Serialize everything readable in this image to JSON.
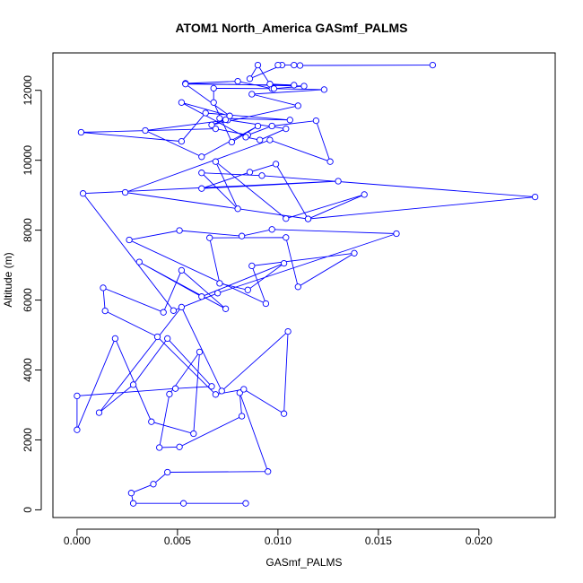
{
  "chart_data": {
    "type": "line",
    "title": "ATOM1 North_America GASmf_PALMS",
    "xlabel": "GASmf_PALMS",
    "ylabel": "Altitude (m)",
    "xlim": [
      -0.0012,
      0.0238
    ],
    "ylim": [
      -220,
      13070
    ],
    "x_ticks": [
      0.0,
      0.005,
      0.01,
      0.015,
      0.02
    ],
    "x_tick_labels": [
      "0.000",
      "0.005",
      "0.010",
      "0.015",
      "0.020"
    ],
    "y_ticks": [
      0,
      2000,
      4000,
      6000,
      8000,
      10000,
      12000
    ],
    "y_tick_labels": [
      "0",
      "2000",
      "4000",
      "6000",
      "8000",
      "10000",
      "12000"
    ],
    "grid": false,
    "legend": "none",
    "markers": "open-circle",
    "colors": {
      "series": "#0000ff",
      "axis": "#000000",
      "background": "#ffffff"
    },
    "series": [
      {
        "x": [
          0.0084,
          0.0053,
          0.0028,
          0.0027,
          0.0038,
          0.0045,
          0.0095,
          0.0081,
          0.0082,
          0.0051,
          0.0041,
          0.0046,
          0.0061,
          0.0058,
          0.0037,
          0.0019,
          0.0,
          0.0,
          0.0049,
          0.0067,
          0.0045,
          0.0028,
          0.0011,
          0.0052,
          0.0072,
          0.0105,
          0.0103,
          0.0083,
          0.0069,
          0.004,
          0.0014,
          0.0013,
          0.0043,
          0.0052,
          0.0074,
          0.0031,
          0.0062,
          0.0103,
          0.0085,
          0.0071,
          0.0066,
          0.0104,
          0.011,
          0.0138,
          0.0087,
          0.0094,
          0.0026,
          0.0051,
          0.0082,
          0.0097,
          0.0159,
          0.007,
          0.0048,
          0.0003,
          0.013,
          0.0062,
          0.0086,
          0.0099,
          0.0115,
          0.0228,
          0.0092,
          0.0062,
          0.008,
          0.0069,
          0.0104,
          0.0143,
          0.0115,
          0.0024,
          0.0096,
          0.0126,
          0.0119,
          0.0097,
          0.0085,
          0.0069,
          0.0002,
          0.0052,
          0.0064,
          0.0106,
          0.0071,
          0.0075,
          0.0034,
          0.0062,
          0.009,
          0.0077,
          0.0068,
          0.0068,
          0.0097,
          0.008,
          0.0054,
          0.0113,
          0.0098,
          0.0123,
          0.0087,
          0.011,
          0.0067,
          0.0074,
          0.0104,
          0.0091,
          0.0084,
          0.0052,
          0.0076,
          0.0054,
          0.0108,
          0.0096,
          0.009,
          0.0086,
          0.0102,
          0.01,
          0.0108,
          0.0111,
          0.0177
        ],
        "y": [
          185,
          185,
          185,
          480,
          735,
          1075,
          1095,
          3350,
          2680,
          1800,
          1780,
          3310,
          4515,
          2180,
          2520,
          4900,
          2290,
          3260,
          3470,
          3530,
          4900,
          3580,
          2780,
          5800,
          3400,
          5100,
          2750,
          3450,
          3300,
          4950,
          5690,
          6350,
          5650,
          6850,
          5750,
          7090,
          6100,
          7050,
          6290,
          6480,
          7780,
          7790,
          6380,
          7340,
          6980,
          5900,
          7720,
          7990,
          7830,
          8020,
          7900,
          6200,
          5700,
          9050,
          9400,
          9190,
          9660,
          9890,
          8320,
          8950,
          9560,
          9640,
          8610,
          9960,
          8330,
          9020,
          8320,
          9080,
          10580,
          9960,
          11130,
          10980,
          10720,
          10900,
          10800,
          10540,
          11350,
          11150,
          11200,
          11150,
          10850,
          10100,
          10980,
          10520,
          11650,
          12060,
          12050,
          12260,
          12200,
          12120,
          12050,
          12020,
          11890,
          11560,
          11010,
          11160,
          10900,
          10580,
          10660,
          11650,
          11270,
          12180,
          12150,
          12180,
          12720,
          12330,
          12720,
          12720,
          12720,
          12710,
          12720
        ]
      }
    ]
  }
}
